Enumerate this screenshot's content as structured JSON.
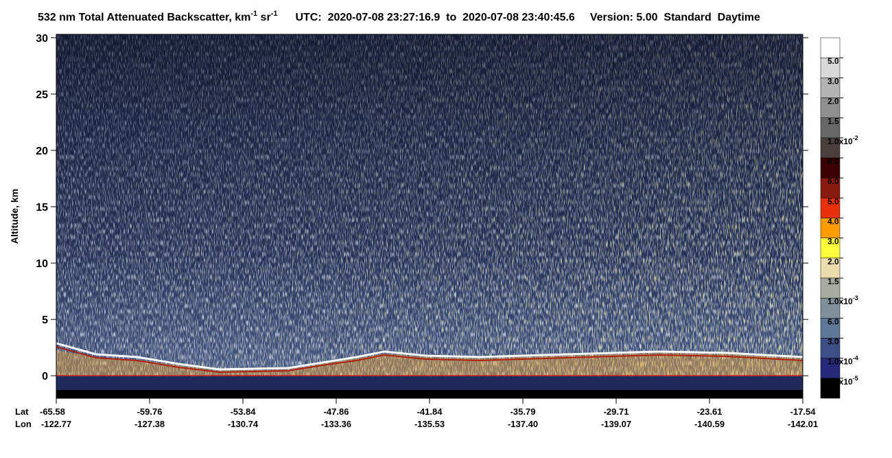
{
  "chart_data": {
    "type": "heatmap",
    "title": {
      "main": "532 nm Total Attenuated Backscatter, km",
      "exp1": "-1",
      "unit2": " sr",
      "exp2": "-1",
      "utc": "UTC:  2020-07-08 23:27:16.9  to  2020-07-08 23:40:45.6",
      "version": "Version: 5.00  Standard  Daytime"
    },
    "y_label": "Altitude, km",
    "ylim": [
      -2,
      30.3
    ],
    "yticks": [
      0,
      5,
      10,
      15,
      20,
      25,
      30
    ],
    "x_axis_names": [
      "Lat",
      "Lon"
    ],
    "lat": [
      "-65.58",
      "-59.76",
      "-53.84",
      "-47.86",
      "-41.84",
      "-35.79",
      "-29.71",
      "-23.61",
      "-17.54"
    ],
    "lon": [
      "-122.77",
      "-127.38",
      "-130.74",
      "-133.36",
      "-135.53",
      "-137.40",
      "-139.07",
      "-140.59",
      "-142.01"
    ],
    "colorbar": {
      "colors": [
        "#ffffff",
        "#d9d9d9",
        "#b3b3b3",
        "#8f8f8f",
        "#676767",
        "#4a3f3c",
        "#3c0000",
        "#8a1a10",
        "#e8300a",
        "#ff9c00",
        "#ffff3c",
        "#ecdcac",
        "#a8aca0",
        "#7f8f9c",
        "#5f7898",
        "#3c4f86",
        "#262a78",
        "#000000"
      ],
      "labels": [
        {
          "base": "5.0"
        },
        {
          "base": "3.0"
        },
        {
          "base": "2.0"
        },
        {
          "base": "1.5"
        },
        {
          "base": "1.0x10",
          "exp": "-2"
        },
        {
          "base": "8.0"
        },
        {
          "base": "6.0"
        },
        {
          "base": "5.0"
        },
        {
          "base": "4.0"
        },
        {
          "base": "3.0"
        },
        {
          "base": "2.0"
        },
        {
          "base": "1.5"
        },
        {
          "base": "1.0x10",
          "exp": "-3"
        },
        {
          "base": "6.0"
        },
        {
          "base": "3.0"
        },
        {
          "base": "1.0x10",
          "exp": "-4"
        },
        {
          "base": "1.0x10",
          "exp": "-5"
        }
      ]
    }
  }
}
